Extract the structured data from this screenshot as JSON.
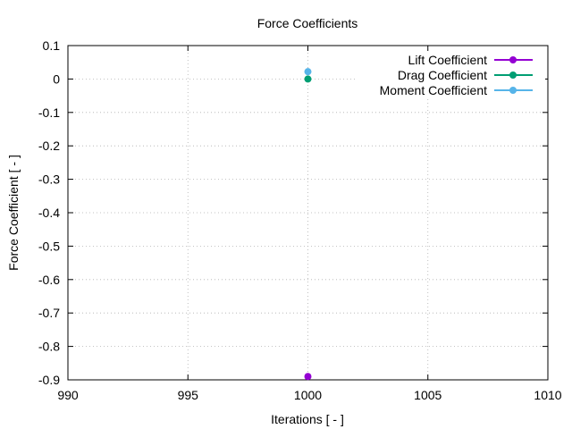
{
  "chart_data": {
    "type": "scatter",
    "title": "Force Coefficients",
    "xlabel": "Iterations [ - ]",
    "ylabel": "Force Coefficient [ - ]",
    "xlim": [
      990,
      1010
    ],
    "ylim": [
      -0.9,
      0.1
    ],
    "xticks": [
      990,
      995,
      1000,
      1005,
      1010
    ],
    "yticks": [
      0.1,
      0,
      -0.1,
      -0.2,
      -0.3,
      -0.4,
      -0.5,
      -0.6,
      -0.7,
      -0.8,
      -0.9
    ],
    "xtick_labels": [
      "990",
      "995",
      "1000",
      "1005",
      "1010"
    ],
    "ytick_labels": [
      "0.1",
      "0",
      "-0.1",
      "-0.2",
      "-0.3",
      "-0.4",
      "-0.5",
      "-0.6",
      "-0.7",
      "-0.8",
      "-0.9"
    ],
    "grid": true,
    "legend_position": "top-right",
    "series": [
      {
        "name": "Lift Coefficient",
        "color": "#9400d3",
        "x": [
          1000
        ],
        "values": [
          -0.89
        ]
      },
      {
        "name": "Drag Coefficient",
        "color": "#009e73",
        "x": [
          1000
        ],
        "values": [
          0.0
        ]
      },
      {
        "name": "Moment Coefficient",
        "color": "#56b4e9",
        "x": [
          1000
        ],
        "values": [
          0.022
        ]
      }
    ]
  }
}
